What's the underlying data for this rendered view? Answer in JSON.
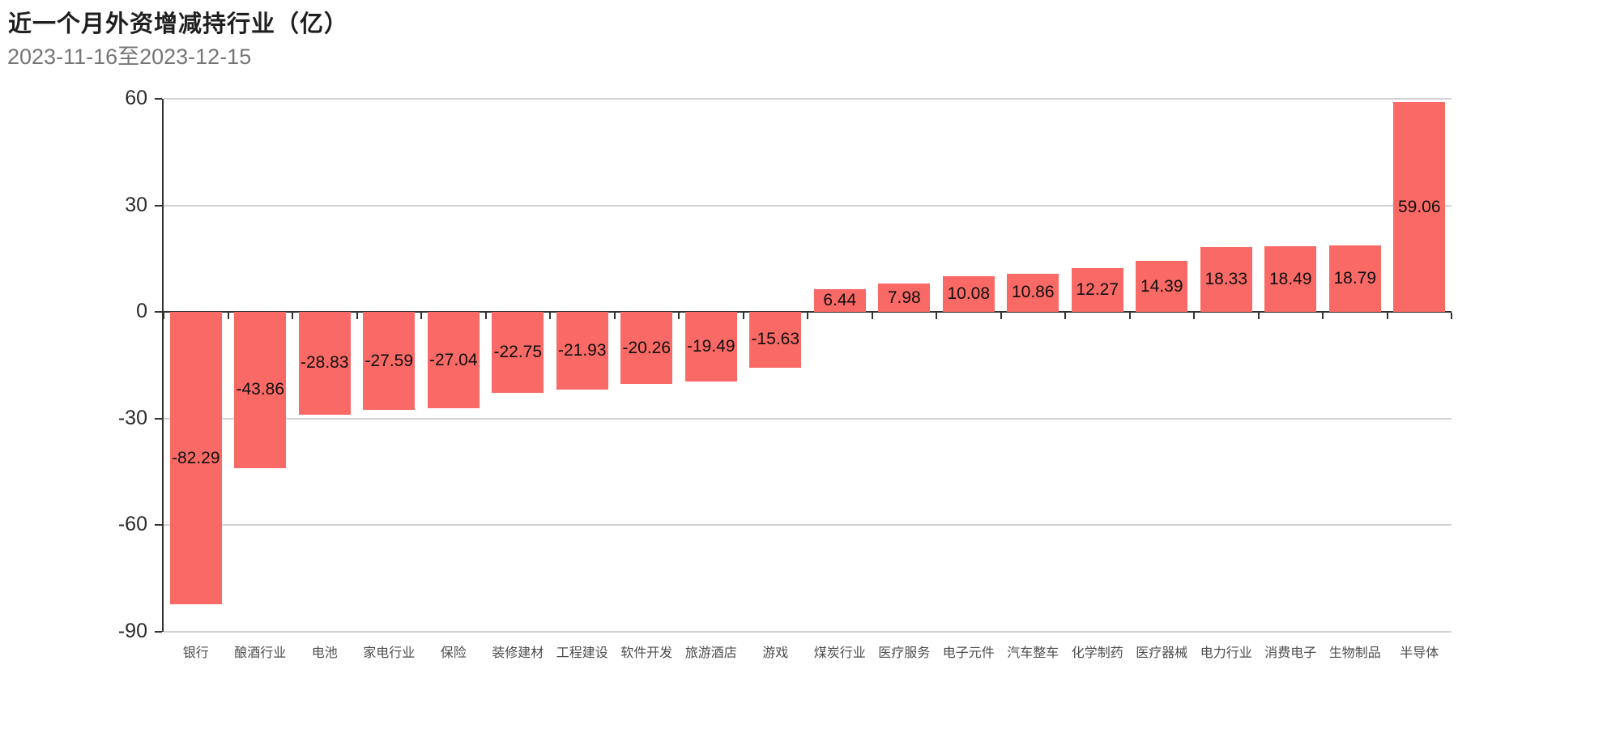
{
  "page": {
    "title": "近一个月外资增减持行业（亿）",
    "subtitle": "2023-11-16至2023-12-15"
  },
  "chart_data": {
    "type": "bar",
    "title": "近一个月外资增减持行业（亿）",
    "subtitle": "2023-11-16至2023-12-15",
    "unit": "亿",
    "categories": [
      "银行",
      "酿酒行业",
      "电池",
      "家电行业",
      "保险",
      "装修建材",
      "工程建设",
      "软件开发",
      "旅游酒店",
      "游戏",
      "煤炭行业",
      "医疗服务",
      "电子元件",
      "汽车整车",
      "化学制药",
      "医疗器械",
      "电力行业",
      "消费电子",
      "生物制品",
      "半导体"
    ],
    "values": [
      -82.29,
      -43.86,
      -28.83,
      -27.59,
      -27.04,
      -22.75,
      -21.93,
      -20.26,
      -19.49,
      -15.63,
      6.44,
      7.98,
      10.08,
      10.86,
      12.27,
      14.39,
      18.33,
      18.49,
      18.79,
      59.06
    ],
    "value_labels": [
      "-82.29",
      "-43.86",
      "-28.83",
      "-27.59",
      "-27.04",
      "-22.75",
      "-21.93",
      "-20.26",
      "-19.49",
      "-15.63",
      "6.44",
      "7.98",
      "10.08",
      "10.86",
      "12.27",
      "14.39",
      "18.33",
      "18.49",
      "18.79",
      "59.06"
    ],
    "label_position": "inside",
    "yticks": [
      60,
      30,
      0,
      -30,
      -60,
      -90
    ],
    "ylim": [
      -90,
      60
    ],
    "grid": true,
    "legend_position": "none",
    "colors": {
      "bar": "#f96a66",
      "gridline": "#d2d2d2",
      "axis": "#333333",
      "value_label": "#0f0f0f",
      "ytick_label": "#2b2b2b",
      "category_label": "#4d4d4d",
      "title": "#1f1f1f",
      "subtitle": "#757575"
    }
  }
}
